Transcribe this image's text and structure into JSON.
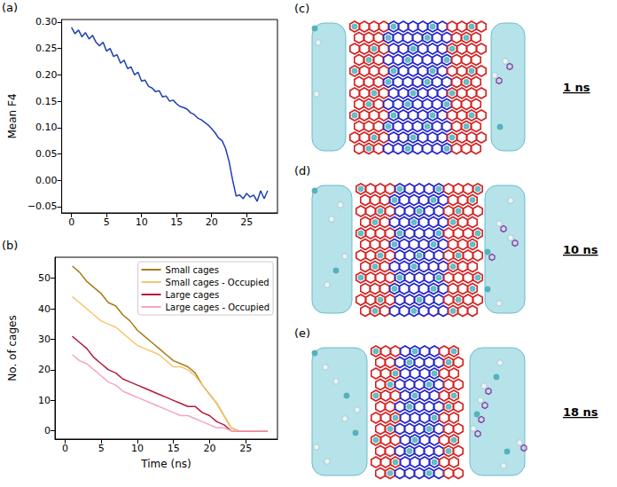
{
  "chart_data": [
    {
      "type": "line",
      "panel": "(a)",
      "y_label": "Mean F4",
      "grid": false,
      "xlim": [
        -1.4,
        29.4
      ],
      "xticks": [
        0,
        5,
        10,
        15,
        20,
        25
      ],
      "ylim": [
        -0.062,
        0.305
      ],
      "yticks": [
        {
          "value": -0.05,
          "label": "−0.05"
        },
        {
          "value": 0,
          "label": "0.00"
        },
        {
          "value": 0.05,
          "label": "0.05"
        },
        {
          "value": 0.1,
          "label": "0.10"
        },
        {
          "value": 0.15,
          "label": "0.15"
        },
        {
          "value": 0.2,
          "label": "0.20"
        },
        {
          "value": 0.25,
          "label": "0.25"
        },
        {
          "value": 0.3,
          "label": "0.30"
        }
      ],
      "series": [
        {
          "color": "#1f3fb0",
          "x": [
            0,
            0.5,
            1,
            1.5,
            2,
            2.5,
            3,
            3.5,
            4,
            4.5,
            5,
            5.5,
            6,
            6.5,
            7,
            7.5,
            8,
            8.5,
            9,
            9.5,
            10,
            10.5,
            11,
            11.5,
            12,
            12.5,
            13,
            13.5,
            14,
            14.5,
            15,
            15.5,
            16,
            16.5,
            17,
            17.5,
            18,
            18.5,
            19,
            19.5,
            20,
            20.5,
            21,
            21.5,
            22,
            22.5,
            23,
            23.5,
            24,
            24.5,
            25,
            25.5,
            26,
            26.5,
            27,
            27.5,
            28
          ],
          "values": [
            0.29,
            0.278,
            0.285,
            0.272,
            0.28,
            0.268,
            0.275,
            0.262,
            0.255,
            0.262,
            0.245,
            0.25,
            0.235,
            0.238,
            0.222,
            0.228,
            0.212,
            0.215,
            0.2,
            0.205,
            0.188,
            0.19,
            0.178,
            0.175,
            0.168,
            0.17,
            0.158,
            0.16,
            0.15,
            0.152,
            0.145,
            0.14,
            0.138,
            0.135,
            0.128,
            0.125,
            0.118,
            0.115,
            0.11,
            0.105,
            0.098,
            0.09,
            0.08,
            0.075,
            0.06,
            0.035,
            0.0,
            -0.03,
            -0.028,
            -0.035,
            -0.025,
            -0.032,
            -0.028,
            -0.04,
            -0.02,
            -0.035,
            -0.02
          ]
        }
      ]
    },
    {
      "type": "line",
      "panel": "(b)",
      "x_label": "Time (ns)",
      "y_label": "No. of cages",
      "grid": false,
      "legend": "upper right",
      "xlim": [
        -1.4,
        29.4
      ],
      "xticks": [
        0,
        5,
        10,
        15,
        20,
        25
      ],
      "ylim": [
        -2.7,
        56.9
      ],
      "yticks": [
        0,
        10,
        20,
        30,
        40,
        50
      ],
      "x": [
        1,
        2,
        3,
        4,
        5,
        6,
        7,
        8,
        9,
        10,
        11,
        12,
        13,
        14,
        15,
        16,
        17,
        18,
        19,
        20,
        21,
        22,
        23,
        24,
        25,
        26,
        27,
        28
      ],
      "series": [
        {
          "name": "Small cages",
          "color": "#a87b16",
          "values": [
            54,
            52,
            49,
            47,
            45,
            42,
            41,
            38,
            36,
            33,
            31,
            29,
            27,
            25,
            23,
            22,
            21,
            19,
            15,
            12,
            9,
            5,
            1,
            0,
            0,
            0,
            0,
            0
          ]
        },
        {
          "name": "Small cages - Occupied",
          "color": "#f7c66e",
          "values": [
            44,
            42,
            40,
            38,
            36,
            35,
            34,
            32,
            30,
            28,
            27,
            26,
            25,
            23,
            21,
            21,
            20,
            18,
            15,
            12,
            9,
            5,
            1,
            0,
            0,
            0,
            0,
            0
          ]
        },
        {
          "name": "Large cages",
          "color": "#b31b3a",
          "values": [
            31,
            29,
            27,
            24,
            22,
            20,
            19,
            17,
            16,
            15,
            14,
            13,
            12,
            11,
            10,
            9,
            8,
            8,
            6,
            5,
            3,
            2,
            0,
            0,
            0,
            0,
            0,
            0
          ]
        },
        {
          "name": "Large cages - Occupied",
          "color": "#f4a6bd",
          "values": [
            25,
            23,
            22,
            20,
            18,
            16,
            15,
            13,
            12,
            11,
            10,
            9,
            8,
            7,
            6,
            5,
            5,
            4,
            3,
            2,
            1,
            1,
            0,
            0,
            0,
            0,
            0,
            0
          ]
        }
      ]
    }
  ],
  "images": [
    {
      "panel": "(c)",
      "label": "1 ns"
    },
    {
      "panel": "(d)",
      "label": "10 ns"
    },
    {
      "panel": "(e)",
      "label": "18 ns"
    }
  ]
}
